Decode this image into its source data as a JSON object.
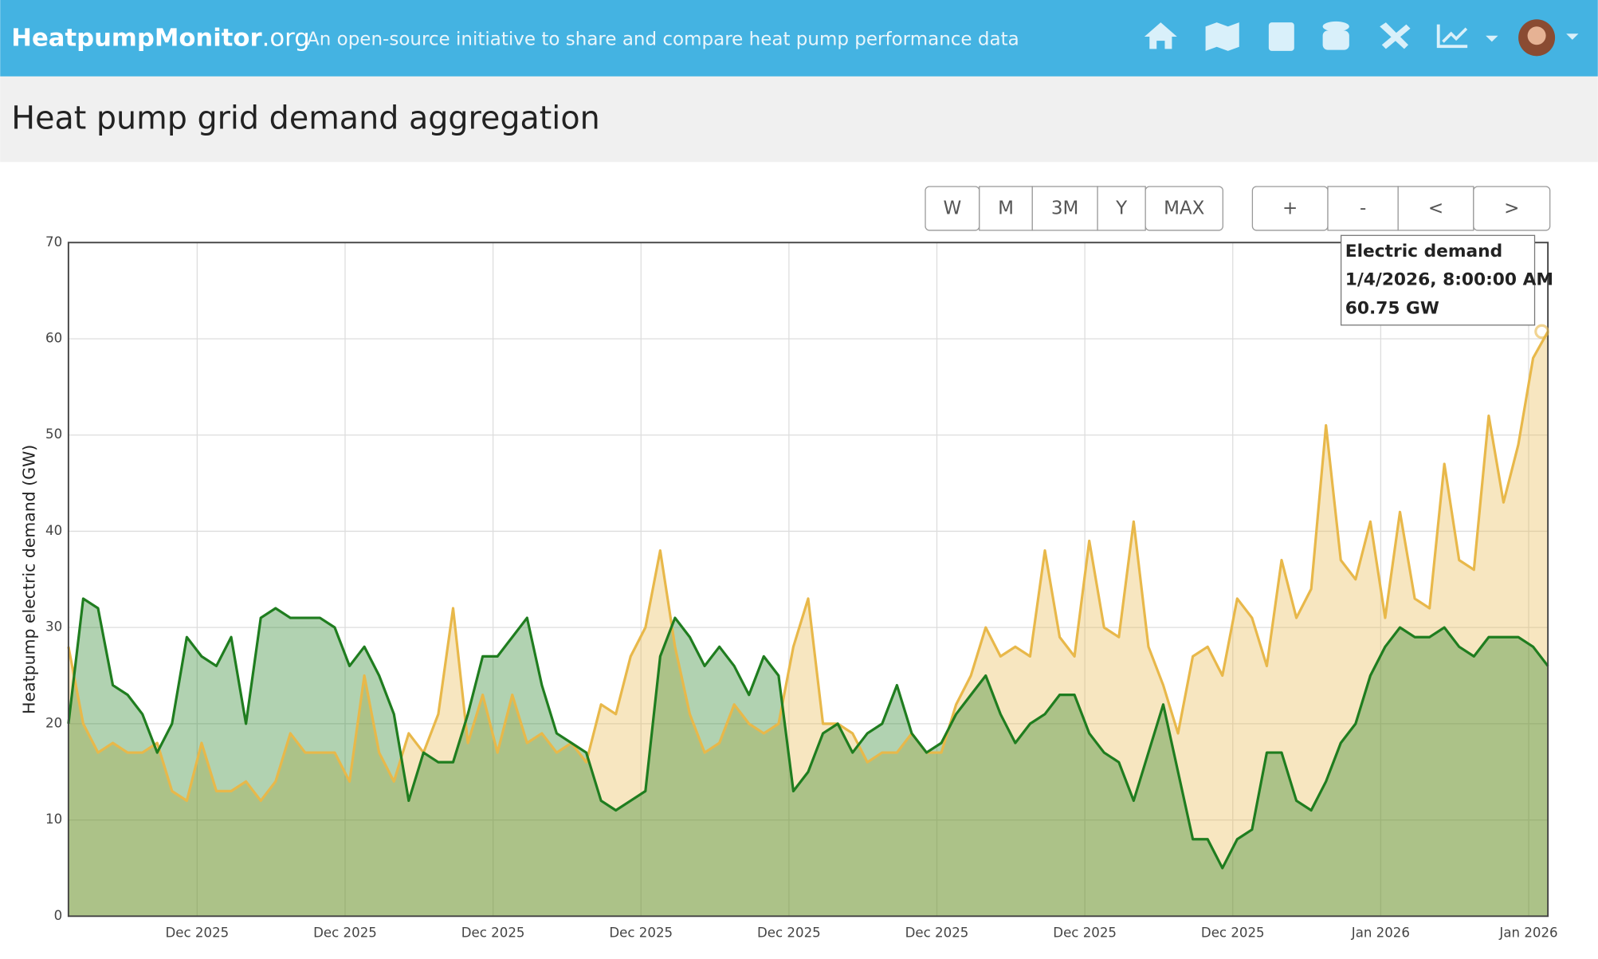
{
  "header": {
    "brand": "HeatpumpMonitor",
    "brand_suffix": ".org",
    "tagline": "An open-source initiative to share and compare heat pump performance data"
  },
  "page_title": "Heat pump grid demand aggregation",
  "range_buttons": [
    "W",
    "M",
    "3M",
    "Y",
    "MAX"
  ],
  "nav_buttons": [
    "+",
    "-",
    "<",
    ">"
  ],
  "chart_data": {
    "type": "area",
    "ylabel": "Heatpump electric demand (GW)",
    "ylim": [
      0,
      70
    ],
    "yticks": [
      0,
      10,
      20,
      30,
      40,
      50,
      60,
      70
    ],
    "xlim": [
      0,
      100
    ],
    "xticks": [
      {
        "value": 8.7,
        "label": "Dec 2025"
      },
      {
        "value": 18.7,
        "label": "Dec 2025"
      },
      {
        "value": 28.7,
        "label": "Dec 2025"
      },
      {
        "value": 38.7,
        "label": "Dec 2025"
      },
      {
        "value": 48.7,
        "label": "Dec 2025"
      },
      {
        "value": 58.7,
        "label": "Dec 2025"
      },
      {
        "value": 68.7,
        "label": "Dec 2025"
      },
      {
        "value": 78.7,
        "label": "Dec 2025"
      },
      {
        "value": 88.7,
        "label": "Jan 2026"
      },
      {
        "value": 98.7,
        "label": "Jan 2026"
      }
    ],
    "grid": true,
    "series": [
      {
        "color": "#e8b84a",
        "name": "Electric demand",
        "values": [
          28,
          20,
          17,
          18,
          17,
          17,
          18,
          13,
          12,
          18,
          13,
          13,
          14,
          12,
          14,
          19,
          17,
          17,
          17,
          14,
          25,
          17,
          14,
          19,
          17,
          21,
          32,
          18,
          23,
          17,
          23,
          18,
          19,
          17,
          18,
          16,
          22,
          21,
          27,
          30,
          38,
          28,
          21,
          17,
          18,
          22,
          20,
          19,
          20,
          28,
          33,
          20,
          20,
          19,
          16,
          17,
          17,
          19,
          17,
          17,
          22,
          25,
          30,
          27,
          28,
          27,
          38,
          29,
          27,
          39,
          30,
          29,
          41,
          28,
          24,
          19,
          27,
          28,
          25,
          33,
          31,
          26,
          37,
          31,
          34,
          51,
          37,
          35,
          41,
          31,
          42,
          33,
          32,
          47,
          37,
          36,
          52,
          43,
          49,
          58,
          60.75
        ]
      },
      {
        "color": "#1f7d1f",
        "values": [
          20,
          33,
          32,
          24,
          23,
          21,
          17,
          20,
          29,
          27,
          26,
          29,
          20,
          31,
          32,
          31,
          31,
          31,
          30,
          26,
          28,
          25,
          21,
          12,
          17,
          16,
          16,
          21,
          27,
          27,
          29,
          31,
          24,
          19,
          18,
          17,
          12,
          11,
          12,
          13,
          27,
          31,
          29,
          26,
          28,
          26,
          23,
          27,
          25,
          13,
          15,
          19,
          20,
          17,
          19,
          20,
          24,
          19,
          17,
          18,
          21,
          23,
          25,
          21,
          18,
          20,
          21,
          23,
          23,
          19,
          17,
          16,
          12,
          17,
          22,
          15,
          8,
          8,
          5,
          8,
          9,
          17,
          17,
          12,
          11,
          14,
          18,
          20,
          25,
          28,
          30,
          29,
          29,
          30,
          28,
          27,
          29,
          29,
          29,
          28,
          26
        ]
      }
    ],
    "tooltip": {
      "title": "Electric demand",
      "time": "1/4/2026, 8:00:00 AM",
      "value": "60.75 GW"
    }
  }
}
